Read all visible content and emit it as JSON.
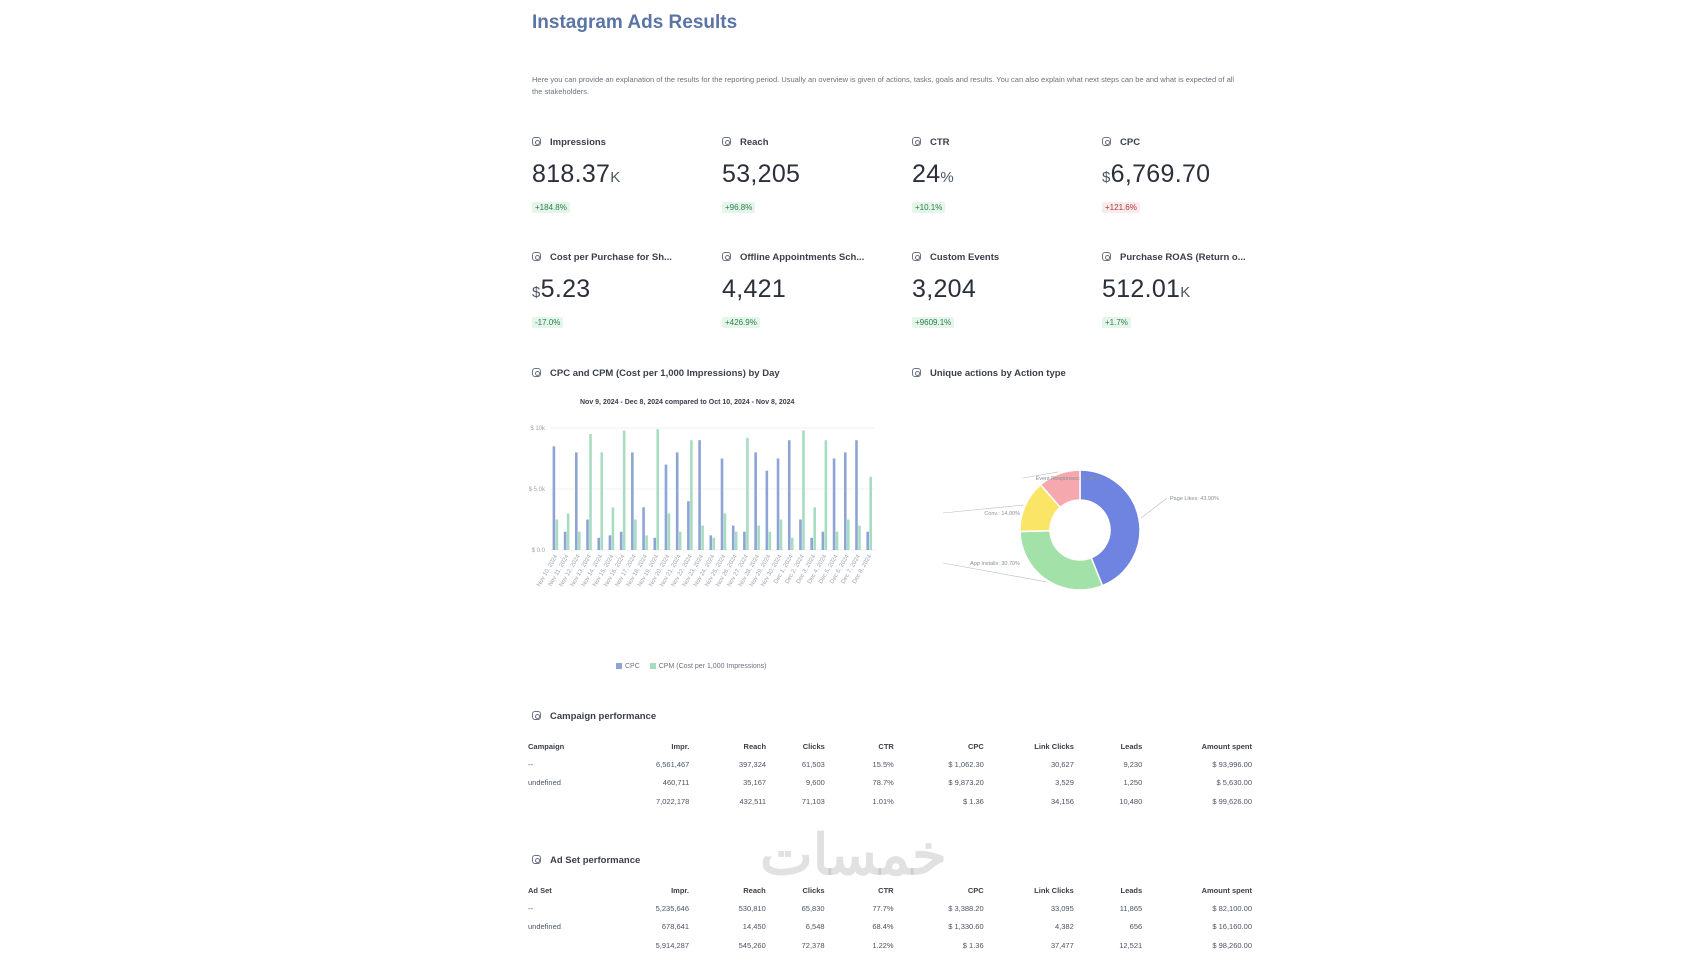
{
  "page": {
    "title": "Instagram Ads Results",
    "description": "Here you can provide an explanation of the results for the reporting period. Usually an overview is given of actions, tasks, goals and results. You can also explain what next steps can be and what is expected of all the stakeholders."
  },
  "kpis": [
    {
      "label": "Impressions",
      "prefix": "",
      "value": "818.37",
      "unit": "K",
      "change": "+184.8%",
      "trend": "positive"
    },
    {
      "label": "Reach",
      "prefix": "",
      "value": "53,205",
      "unit": "",
      "change": "+96.8%",
      "trend": "positive"
    },
    {
      "label": "CTR",
      "prefix": "",
      "value": "24",
      "unit": "%",
      "change": "+10.1%",
      "trend": "positive"
    },
    {
      "label": "CPC",
      "prefix": "$",
      "value": "6,769.70",
      "unit": "",
      "change": "+121.6%",
      "trend": "negative"
    },
    {
      "label": "Cost per Purchase for Sh...",
      "prefix": "$",
      "value": "5.23",
      "unit": "",
      "change": "-17.0%",
      "trend": "positive"
    },
    {
      "label": "Offline Appointments Sch...",
      "prefix": "",
      "value": "4,421",
      "unit": "",
      "change": "+426.9%",
      "trend": "positive"
    },
    {
      "label": "Custom Events",
      "prefix": "",
      "value": "3,204",
      "unit": "",
      "change": "+9609.1%",
      "trend": "positive"
    },
    {
      "label": "Purchase ROAS (Return o...",
      "prefix": "",
      "value": "512.01",
      "unit": "K",
      "change": "+1.7%",
      "trend": "positive"
    }
  ],
  "bar_chart_section": {
    "title": "CPC and CPM (Cost per 1,000 Impressions) by Day",
    "date_range": "Nov 9, 2024 - Dec 8, 2024 compared to Oct 10, 2024 - Nov 8, 2024"
  },
  "donut_section": {
    "title": "Unique actions by Action type"
  },
  "chart_data": [
    {
      "type": "bar",
      "title": "CPC and CPM (Cost per 1,000 Impressions) by Day",
      "xlabel": "",
      "ylabel": "",
      "ylim": [
        0,
        10000
      ],
      "ytick_labels": [
        "$ 0.0",
        "$ 5.0k",
        "$ 10k"
      ],
      "ytick_values": [
        0,
        5000,
        10000
      ],
      "grid": true,
      "legend_position": "bottom",
      "categories": [
        "Nov 10, 2024",
        "Nov 11, 2024",
        "Nov 12, 2024",
        "Nov 13, 2024",
        "Nov 14, 2024",
        "Nov 15, 2024",
        "Nov 16, 2024",
        "Nov 17, 2024",
        "Nov 18, 2024",
        "Nov 19, 2024",
        "Nov 20, 2024",
        "Nov 21, 2024",
        "Nov 22, 2024",
        "Nov 23, 2024",
        "Nov 24, 2024",
        "Nov 25, 2024",
        "Nov 26, 2024",
        "Nov 27, 2024",
        "Nov 28, 2024",
        "Nov 29, 2024",
        "Nov 30, 2024",
        "Dec 1, 2024",
        "Dec 2, 2024",
        "Dec 3, 2024",
        "Dec 4, 2024",
        "Dec 5, 2024",
        "Dec 6, 2024",
        "Dec 7, 2024",
        "Dec 8, 2024"
      ],
      "series": [
        {
          "name": "CPC",
          "color": "#8da4d4",
          "values": [
            8500,
            1500,
            8000,
            2500,
            1000,
            1200,
            1500,
            8000,
            3500,
            1000,
            7000,
            8000,
            4000,
            9000,
            1200,
            7500,
            2000,
            1500,
            8000,
            6500,
            7500,
            9000,
            2500,
            1000,
            1500,
            7500,
            8000,
            9000,
            1500
          ]
        },
        {
          "name": "CPM (Cost per 1,000 Impressions)",
          "color": "#a8dcc0",
          "values": [
            2500,
            3000,
            1500,
            9500,
            8000,
            3500,
            9800,
            2500,
            1200,
            9900,
            3000,
            1500,
            9000,
            2000,
            1000,
            3000,
            1500,
            9200,
            2000,
            1500,
            2500,
            1000,
            9800,
            3500,
            9000,
            1500,
            2500,
            2000,
            6000
          ]
        }
      ]
    },
    {
      "type": "pie",
      "title": "Unique actions by Action type",
      "categories": [
        "Page Likes",
        "App Installs",
        "Conversions",
        "Event Responses"
      ],
      "values": [
        43.9,
        30.7,
        14.0,
        11.4
      ],
      "labels": [
        "Page Likes: 43.90%",
        "App installs: 30.70%",
        "Conv.: 14.00%",
        "Event Responses: 11.40%"
      ],
      "colors": [
        "#6f84e0",
        "#a2e2a8",
        "#fbe567",
        "#f5a8ad"
      ]
    }
  ],
  "campaign_table": {
    "title": "Campaign performance",
    "columns": [
      "Campaign",
      "Impr.",
      "Reach",
      "Clicks",
      "CTR",
      "CPC",
      "Link Clicks",
      "Leads",
      "Amount spent"
    ],
    "rows": [
      [
        "--",
        "6,561,467",
        "397,324",
        "61,503",
        "15.5%",
        "$ 1,062.30",
        "30,627",
        "9,230",
        "$ 93,996.00"
      ],
      [
        "undefined",
        "460,711",
        "35,167",
        "9,600",
        "78.7%",
        "$ 9,873.20",
        "3,529",
        "1,250",
        "$ 5,630.00"
      ],
      [
        "",
        "7,022,178",
        "432,511",
        "71,103",
        "1.01%",
        "$ 1.36",
        "34,156",
        "10,480",
        "$ 99,626.00"
      ]
    ]
  },
  "adset_table": {
    "title": "Ad Set performance",
    "columns": [
      "Ad Set",
      "Impr.",
      "Reach",
      "Clicks",
      "CTR",
      "CPC",
      "Link Clicks",
      "Leads",
      "Amount spent"
    ],
    "rows": [
      [
        "--",
        "5,235,646",
        "530,810",
        "65,830",
        "77.7%",
        "$ 3,388.20",
        "33,095",
        "11,865",
        "$ 82,100.00"
      ],
      [
        "undefined",
        "678,641",
        "14,450",
        "6,548",
        "68.4%",
        "$ 1,330.60",
        "4,382",
        "656",
        "$ 16,160.00"
      ],
      [
        "",
        "5,914,287",
        "545,260",
        "72,378",
        "1.22%",
        "$ 1.36",
        "37,477",
        "12,521",
        "$ 98,260.00"
      ]
    ]
  },
  "watermark": "خمسات"
}
